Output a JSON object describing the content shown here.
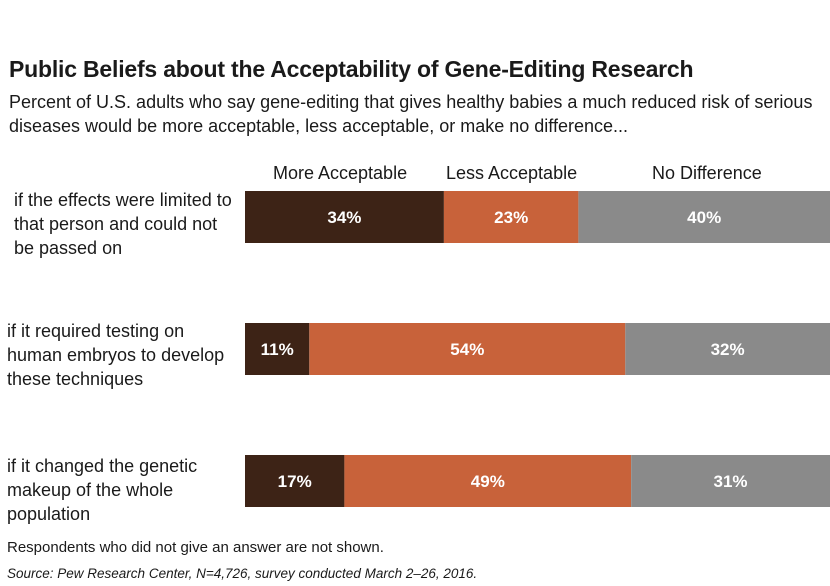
{
  "chart_data": {
    "type": "bar",
    "orientation": "horizontal-stacked",
    "title": "Public Beliefs about the Acceptability of Gene-Editing Research",
    "subtitle": "Percent of U.S. adults who say gene-editing that gives healthy babies a much reduced risk of serious diseases would be more acceptable, less acceptable, or make no difference...",
    "categories": [
      "if the effects were limited to that person and could not be passed on",
      "if it required testing on human embryos to develop these techniques",
      "if it changed the genetic makeup of the whole population"
    ],
    "series": [
      {
        "name": "More Acceptable",
        "color": "#3d2316",
        "values": [
          34,
          11,
          17
        ]
      },
      {
        "name": "Less Acceptable",
        "color": "#c8623a",
        "values": [
          23,
          54,
          49
        ]
      },
      {
        "name": "No Difference",
        "color": "#8a8a8a",
        "values": [
          40,
          32,
          31
        ]
      }
    ],
    "value_suffix": "%",
    "xlim": [
      0,
      100
    ],
    "legend": "top",
    "footnote": "Respondents who did not give an answer are not shown.",
    "source": "Source: Pew Research Center, N=4,726, survey conducted March 2–26, 2016."
  }
}
